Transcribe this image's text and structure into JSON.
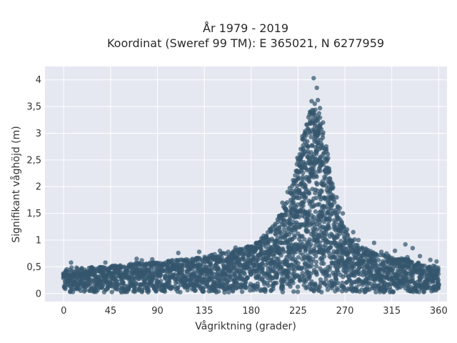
{
  "chart_data": {
    "type": "scatter",
    "title_line1": "År 1979 - 2019",
    "title_line2": "Koordinat (Sweref 99 TM): E 365021, N 6277959",
    "xlabel": "Vågriktning (grader)",
    "ylabel": "Signifikant våghöjd (m)",
    "xlim": [
      -18,
      368
    ],
    "ylim": [
      -0.15,
      4.25
    ],
    "x_ticks": [
      0,
      45,
      90,
      135,
      180,
      225,
      270,
      315,
      360
    ],
    "x_tick_labels": [
      "0",
      "45",
      "90",
      "135",
      "180",
      "225",
      "270",
      "315",
      "360"
    ],
    "y_ticks": [
      0,
      0.5,
      1,
      1.5,
      2,
      2.5,
      3,
      3.5,
      4
    ],
    "y_tick_labels": [
      "0",
      "0,5",
      "1",
      "1,5",
      "2",
      "2,5",
      "3",
      "3,5",
      "4"
    ],
    "grid": true,
    "colors": {
      "background": "#e5e8f0",
      "grid": "#ffffff",
      "marker": "#34566e"
    },
    "envelope": {
      "x": [
        0,
        10,
        20,
        30,
        45,
        60,
        70,
        90,
        110,
        135,
        160,
        180,
        195,
        205,
        215,
        222,
        228,
        232,
        236,
        240,
        244,
        248,
        252,
        256,
        260,
        265,
        270,
        285,
        300,
        315,
        330,
        345,
        360
      ],
      "y": [
        0.45,
        0.5,
        0.48,
        0.5,
        0.52,
        0.55,
        0.58,
        0.6,
        0.63,
        0.7,
        0.8,
        0.9,
        1.1,
        1.4,
        1.8,
        2.3,
        2.8,
        3.2,
        3.4,
        3.5,
        3.4,
        3.2,
        2.8,
        2.3,
        1.8,
        1.5,
        1.2,
        0.9,
        0.75,
        0.7,
        0.65,
        0.55,
        0.5
      ]
    },
    "outliers": [
      {
        "x": 240,
        "y": 4.03
      },
      {
        "x": 243,
        "y": 3.85
      },
      {
        "x": 238,
        "y": 3.6
      },
      {
        "x": 246,
        "y": 3.47
      },
      {
        "x": 236,
        "y": 3.35
      },
      {
        "x": 249,
        "y": 3.2
      },
      {
        "x": 232,
        "y": 3.0
      },
      {
        "x": 235,
        "y": 2.75
      },
      {
        "x": 230,
        "y": 2.6
      },
      {
        "x": 228,
        "y": 2.55
      },
      {
        "x": 226,
        "y": 2.4
      },
      {
        "x": 224,
        "y": 2.3
      },
      {
        "x": 221,
        "y": 2.05
      },
      {
        "x": 225,
        "y": 2.15
      },
      {
        "x": 215,
        "y": 1.9
      },
      {
        "x": 218,
        "y": 1.75
      },
      {
        "x": 212,
        "y": 1.6
      },
      {
        "x": 210,
        "y": 1.7
      },
      {
        "x": 258,
        "y": 2.05
      },
      {
        "x": 262,
        "y": 1.8
      },
      {
        "x": 265,
        "y": 1.6
      },
      {
        "x": 268,
        "y": 1.5
      },
      {
        "x": 272,
        "y": 1.2
      },
      {
        "x": 278,
        "y": 1.15
      },
      {
        "x": 283,
        "y": 1.0
      },
      {
        "x": 298,
        "y": 0.95
      },
      {
        "x": 305,
        "y": 0.78
      },
      {
        "x": 310,
        "y": 0.75
      },
      {
        "x": 318,
        "y": 0.8
      },
      {
        "x": 328,
        "y": 0.92
      },
      {
        "x": 335,
        "y": 0.85
      },
      {
        "x": 342,
        "y": 0.7
      },
      {
        "x": 352,
        "y": 0.63
      },
      {
        "x": 358,
        "y": 0.6
      },
      {
        "x": 355,
        "y": 0.52
      },
      {
        "x": 330,
        "y": 0.68
      },
      {
        "x": 7,
        "y": 0.58
      },
      {
        "x": 40,
        "y": 0.58
      },
      {
        "x": 70,
        "y": 0.65
      },
      {
        "x": 75,
        "y": 0.62
      },
      {
        "x": 85,
        "y": 0.64
      },
      {
        "x": 110,
        "y": 0.76
      },
      {
        "x": 130,
        "y": 0.78
      },
      {
        "x": 150,
        "y": 0.8
      },
      {
        "x": 165,
        "y": 0.86
      },
      {
        "x": 185,
        "y": 0.95
      },
      {
        "x": 192,
        "y": 1.08
      },
      {
        "x": 198,
        "y": 1.2
      },
      {
        "x": 203,
        "y": 1.3
      },
      {
        "x": 207,
        "y": 1.45
      },
      {
        "x": 246,
        "y": 3.1
      },
      {
        "x": 241,
        "y": 3.55
      },
      {
        "x": 244,
        "y": 3.62
      },
      {
        "x": 237,
        "y": 3.4
      }
    ]
  }
}
